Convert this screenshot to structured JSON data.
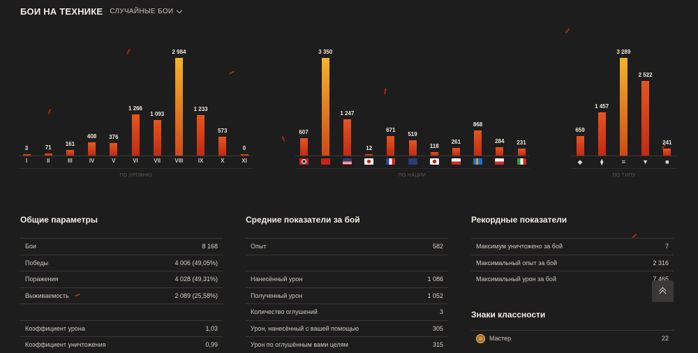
{
  "header": {
    "title": "БОИ НА ТЕХНИКЕ",
    "filter": "СЛУЧАЙНЫЕ БОИ"
  },
  "chart_data": [
    {
      "type": "bar",
      "categories": [
        "I",
        "II",
        "III",
        "IV",
        "V",
        "VI",
        "VII",
        "VIII",
        "IX",
        "X",
        "XI"
      ],
      "values": [
        3,
        71,
        161,
        408,
        376,
        1266,
        1093,
        2984,
        1233,
        573,
        0
      ],
      "value_labels": [
        "3",
        "71",
        "161",
        "408",
        "376",
        "1 266",
        "1 093",
        "2 984",
        "1 233",
        "573",
        "0"
      ],
      "xlabel": "ПО УРОВНЮ"
    },
    {
      "type": "bar",
      "categories": [
        "de",
        "cn",
        "us",
        "jp",
        "fr",
        "uk",
        "jp2",
        "cz",
        "se",
        "pl",
        "it"
      ],
      "values": [
        607,
        3350,
        1247,
        12,
        671,
        519,
        118,
        261,
        868,
        284,
        231
      ],
      "value_labels": [
        "607",
        "3 350",
        "1 247",
        "12",
        "671",
        "519",
        "118",
        "261",
        "868",
        "284",
        "231"
      ],
      "xlabel": "ПО НАЦИИ"
    },
    {
      "type": "bar",
      "categories": [
        "lt",
        "mt",
        "ht",
        "td",
        "spg"
      ],
      "values": [
        659,
        1457,
        3289,
        2522,
        241
      ],
      "value_labels": [
        "659",
        "1 457",
        "3 289",
        "2 522",
        "241"
      ],
      "xlabel": "ПО ТИПУ"
    }
  ],
  "icons": {
    "types": [
      "light-tank-icon",
      "medium-tank-icon",
      "heavy-tank-icon",
      "tank-destroyer-icon",
      "spg-icon"
    ],
    "flags": [
      "germany-flag-icon",
      "ussr-flag-icon",
      "usa-flag-icon",
      "china-flag-icon",
      "france-flag-icon",
      "uk-flag-icon",
      "japan-flag-icon",
      "czech-flag-icon",
      "sweden-flag-icon",
      "poland-flag-icon",
      "italy-flag-icon"
    ]
  },
  "general": {
    "title": "Общие параметры",
    "rows": [
      {
        "label": "Бои",
        "value": "8 168"
      },
      {
        "label": "Победы",
        "value": "4 006 (49,05%)"
      },
      {
        "label": "Поражения",
        "value": "4 028 (49,31%)"
      },
      {
        "label": "Выживаемость",
        "value": "2 089 (25,58%)"
      },
      {
        "label": "",
        "value": ""
      },
      {
        "label": "Коэффициент урона",
        "value": "1,03"
      },
      {
        "label": "Коэффициент уничтожения",
        "value": "0,99"
      }
    ]
  },
  "average": {
    "title": "Средние показатели за бой",
    "rows": [
      {
        "label": "Опыт",
        "value": "582"
      },
      {
        "label": "",
        "value": ""
      },
      {
        "label": "Нанесённый урон",
        "value": "1 086"
      },
      {
        "label": "Полученный урон",
        "value": "1 052"
      },
      {
        "label": "Количество оглушений",
        "value": "3"
      },
      {
        "label": "Урон, нанесённый с вашей помощью",
        "value": "305"
      },
      {
        "label": "Урон по оглушённым вами целям",
        "value": "315"
      }
    ]
  },
  "records": {
    "title": "Рекордные показатели",
    "rows": [
      {
        "label": "Максимум уничтожено за бой",
        "value": "7"
      },
      {
        "label": "Максимальный опыт за бой",
        "value": "2 316"
      },
      {
        "label": "Максимальный урон за бой",
        "value": "7 465"
      }
    ]
  },
  "badges": {
    "title": "Знаки классности",
    "rows": [
      {
        "label": "Мастер",
        "value": "22"
      }
    ]
  },
  "colors": {
    "bar": "#d23a18",
    "bar_top": "#f5b32a",
    "background": "#1e1d1d"
  }
}
